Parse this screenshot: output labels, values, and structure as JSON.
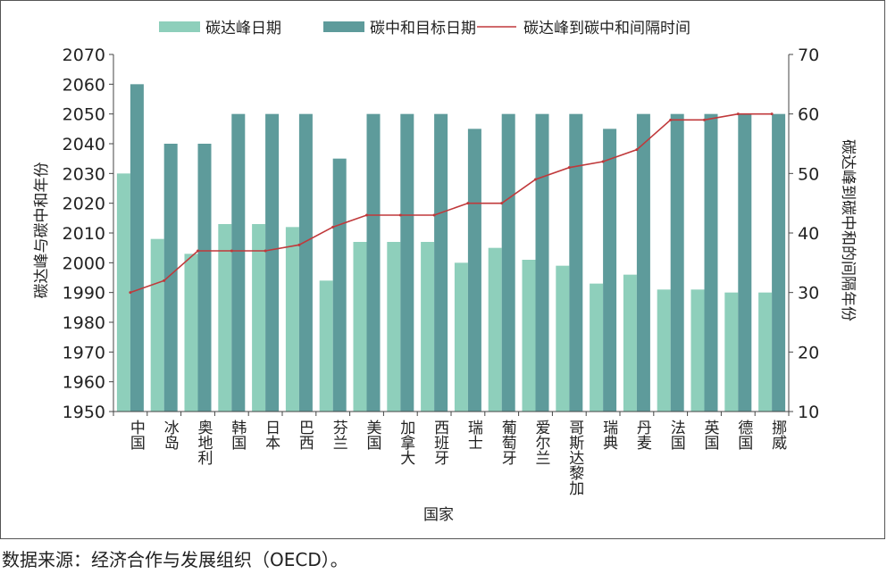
{
  "chart_data": {
    "type": "bar",
    "title": "",
    "xlabel": "国家",
    "ylabel_left": "碳达峰与碳中和年份",
    "ylabel_right": "碳达峰到碳中和的间隔年份",
    "ylim_left": [
      1950,
      2070
    ],
    "ylim_right": [
      10,
      70
    ],
    "yticks_left": [
      1950,
      1960,
      1970,
      1980,
      1990,
      2000,
      2010,
      2020,
      2030,
      2040,
      2050,
      2060,
      2070
    ],
    "yticks_right": [
      10,
      20,
      30,
      40,
      50,
      60,
      70
    ],
    "grid": false,
    "legend_position": "top",
    "categories": [
      "中国",
      "冰岛",
      "奥地利",
      "韩国",
      "日本",
      "巴西",
      "芬兰",
      "美国",
      "加拿大",
      "西班牙",
      "瑞士",
      "葡萄牙",
      "爱尔兰",
      "哥斯达黎加",
      "瑞典",
      "丹麦",
      "法国",
      "英国",
      "德国",
      "挪威"
    ],
    "series": [
      {
        "name": "碳达峰日期",
        "kind": "bar",
        "axis": "left",
        "color": "#8ecfbb",
        "values": [
          2030,
          2008,
          2003,
          2013,
          2013,
          2012,
          1994,
          2007,
          2007,
          2007,
          2000,
          2005,
          2001,
          1999,
          1993,
          1996,
          1991,
          1991,
          1990,
          1990
        ]
      },
      {
        "name": "碳中和目标日期",
        "kind": "bar",
        "axis": "left",
        "color": "#5e9b9b",
        "values": [
          2060,
          2040,
          2040,
          2050,
          2050,
          2050,
          2035,
          2050,
          2050,
          2050,
          2045,
          2050,
          2050,
          2050,
          2045,
          2050,
          2050,
          2050,
          2050,
          2050
        ]
      },
      {
        "name": "碳达峰到碳中和间隔时间",
        "kind": "line",
        "axis": "right",
        "color": "#c0393b",
        "values": [
          30,
          32,
          37,
          37,
          37,
          38,
          41,
          43,
          43,
          43,
          45,
          45,
          49,
          51,
          52,
          54,
          59,
          59,
          60,
          60
        ]
      }
    ]
  },
  "source_note": "数据来源：经济合作与发展组织（OECD）。"
}
